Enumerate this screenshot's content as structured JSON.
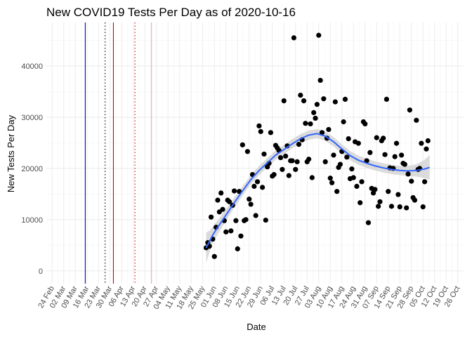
{
  "chart_data": {
    "type": "scatter",
    "title": "New COVID19 Tests Per Day as of 2020-10-16",
    "xlabel": "Date",
    "ylabel": "New Tests Per Day",
    "grid": true,
    "legend": "none",
    "xlim": [
      -3.5,
      248.5
    ],
    "ylim": [
      -2500,
      48500
    ],
    "x_day0": "2020-02-24",
    "x_ticks": [
      {
        "day": 0,
        "label": "24 Feb"
      },
      {
        "day": 7,
        "label": "02 Mar"
      },
      {
        "day": 14,
        "label": "09 Mar"
      },
      {
        "day": 21,
        "label": "16 Mar"
      },
      {
        "day": 28,
        "label": "23 Mar"
      },
      {
        "day": 35,
        "label": "30 Mar"
      },
      {
        "day": 42,
        "label": "06 Apr"
      },
      {
        "day": 49,
        "label": "13 Apr"
      },
      {
        "day": 56,
        "label": "20 Apr"
      },
      {
        "day": 63,
        "label": "27 Apr"
      },
      {
        "day": 70,
        "label": "04 May"
      },
      {
        "day": 77,
        "label": "11 May"
      },
      {
        "day": 84,
        "label": "18 May"
      },
      {
        "day": 91,
        "label": "25 May"
      },
      {
        "day": 98,
        "label": "01 Jun"
      },
      {
        "day": 105,
        "label": "08 Jun"
      },
      {
        "day": 112,
        "label": "15 Jun"
      },
      {
        "day": 119,
        "label": "22 Jun"
      },
      {
        "day": 126,
        "label": "29 Jun"
      },
      {
        "day": 133,
        "label": "06 Jul"
      },
      {
        "day": 140,
        "label": "13 Jul"
      },
      {
        "day": 147,
        "label": "20 Jul"
      },
      {
        "day": 154,
        "label": "27 Jul"
      },
      {
        "day": 161,
        "label": "03 Aug"
      },
      {
        "day": 168,
        "label": "10 Aug"
      },
      {
        "day": 175,
        "label": "17 Aug"
      },
      {
        "day": 182,
        "label": "24 Aug"
      },
      {
        "day": 189,
        "label": "31 Aug"
      },
      {
        "day": 196,
        "label": "07 Sep"
      },
      {
        "day": 203,
        "label": "14 Sep"
      },
      {
        "day": 210,
        "label": "21 Sep"
      },
      {
        "day": 217,
        "label": "28 Sep"
      },
      {
        "day": 224,
        "label": "05 Oct"
      },
      {
        "day": 231,
        "label": "12 Oct"
      },
      {
        "day": 238,
        "label": "19 Oct"
      },
      {
        "day": 245,
        "label": "26 Oct"
      }
    ],
    "y_ticks": [
      0,
      10000,
      20000,
      30000,
      40000
    ],
    "vlines": [
      {
        "day": 20,
        "color": "#0000cc",
        "style": "solid"
      },
      {
        "day": 32,
        "color": "#000000",
        "style": "dotted"
      },
      {
        "day": 37,
        "color": "#cc0000",
        "style": "solid"
      },
      {
        "day": 50,
        "color": "#cc0000",
        "style": "dotted"
      },
      {
        "day": 60,
        "color": "#f4a6a6",
        "style": "solid"
      }
    ],
    "point_color": "#000000",
    "smooth_color": "#3366ff",
    "ribbon_color": "#d9d9d9",
    "points": [
      [
        93,
        4500
      ],
      [
        94,
        5500
      ],
      [
        95,
        4800
      ],
      [
        96,
        10500
      ],
      [
        97,
        6200
      ],
      [
        98,
        2800
      ],
      [
        99,
        8500
      ],
      [
        100,
        13800
      ],
      [
        101,
        11500
      ],
      [
        102,
        15200
      ],
      [
        103,
        12000
      ],
      [
        104,
        9800
      ],
      [
        105,
        7600
      ],
      [
        106,
        13800
      ],
      [
        107,
        13500
      ],
      [
        108,
        7800
      ],
      [
        109,
        12800
      ],
      [
        110,
        15600
      ],
      [
        111,
        9800
      ],
      [
        112,
        4300
      ],
      [
        113,
        15500
      ],
      [
        114,
        6800
      ],
      [
        115,
        24600
      ],
      [
        116,
        9800
      ],
      [
        117,
        10000
      ],
      [
        118,
        23300
      ],
      [
        119,
        14000
      ],
      [
        120,
        13000
      ],
      [
        121,
        18800
      ],
      [
        122,
        16500
      ],
      [
        123,
        10800
      ],
      [
        124,
        17400
      ],
      [
        125,
        28300
      ],
      [
        126,
        27200
      ],
      [
        127,
        16300
      ],
      [
        128,
        22800
      ],
      [
        129,
        9900
      ],
      [
        130,
        20300
      ],
      [
        131,
        21000
      ],
      [
        132,
        27000
      ],
      [
        133,
        18500
      ],
      [
        134,
        18800
      ],
      [
        135,
        24500
      ],
      [
        136,
        24000
      ],
      [
        137,
        23500
      ],
      [
        138,
        22100
      ],
      [
        139,
        19800
      ],
      [
        140,
        33200
      ],
      [
        141,
        22400
      ],
      [
        142,
        24400
      ],
      [
        143,
        18600
      ],
      [
        144,
        21500
      ],
      [
        145,
        21500
      ],
      [
        146,
        45500
      ],
      [
        147,
        19800
      ],
      [
        148,
        21300
      ],
      [
        149,
        24700
      ],
      [
        150,
        34300
      ],
      [
        151,
        25600
      ],
      [
        152,
        33200
      ],
      [
        153,
        28800
      ],
      [
        154,
        21300
      ],
      [
        155,
        21800
      ],
      [
        156,
        28700
      ],
      [
        157,
        18200
      ],
      [
        158,
        30900
      ],
      [
        159,
        29800
      ],
      [
        160,
        32500
      ],
      [
        161,
        46000
      ],
      [
        162,
        37200
      ],
      [
        163,
        27000
      ],
      [
        164,
        33600
      ],
      [
        165,
        21300
      ],
      [
        166,
        25900
      ],
      [
        167,
        27600
      ],
      [
        168,
        18100
      ],
      [
        169,
        17200
      ],
      [
        170,
        22600
      ],
      [
        171,
        33000
      ],
      [
        172,
        15500
      ],
      [
        173,
        20200
      ],
      [
        174,
        20800
      ],
      [
        175,
        23300
      ],
      [
        176,
        29100
      ],
      [
        177,
        33500
      ],
      [
        178,
        22200
      ],
      [
        179,
        25800
      ],
      [
        180,
        18000
      ],
      [
        181,
        19900
      ],
      [
        182,
        18200
      ],
      [
        183,
        25200
      ],
      [
        184,
        16500
      ],
      [
        185,
        24900
      ],
      [
        186,
        13300
      ],
      [
        187,
        17400
      ],
      [
        188,
        29100
      ],
      [
        189,
        28700
      ],
      [
        190,
        21500
      ],
      [
        191,
        9400
      ],
      [
        192,
        23100
      ],
      [
        193,
        16100
      ],
      [
        194,
        15200
      ],
      [
        195,
        15900
      ],
      [
        196,
        26000
      ],
      [
        197,
        12600
      ],
      [
        198,
        13500
      ],
      [
        199,
        25400
      ],
      [
        200,
        25900
      ],
      [
        201,
        22700
      ],
      [
        202,
        33500
      ],
      [
        203,
        15500
      ],
      [
        204,
        20100
      ],
      [
        205,
        12600
      ],
      [
        206,
        20000
      ],
      [
        207,
        22300
      ],
      [
        208,
        24900
      ],
      [
        209,
        14900
      ],
      [
        210,
        12500
      ],
      [
        211,
        22600
      ],
      [
        212,
        21000
      ],
      [
        213,
        20800
      ],
      [
        214,
        12300
      ],
      [
        215,
        18900
      ],
      [
        216,
        31400
      ],
      [
        217,
        17500
      ],
      [
        218,
        14300
      ],
      [
        219,
        13800
      ],
      [
        220,
        29400
      ],
      [
        221,
        19800
      ],
      [
        222,
        20000
      ],
      [
        223,
        24900
      ],
      [
        224,
        12500
      ],
      [
        225,
        17400
      ],
      [
        226,
        23800
      ],
      [
        227,
        25400
      ]
    ],
    "smooth": [
      {
        "day": 93,
        "y": 4500,
        "lo": 1500,
        "hi": 7500
      },
      {
        "day": 95,
        "y": 5700,
        "lo": 3600,
        "hi": 7800
      },
      {
        "day": 97,
        "y": 7000,
        "lo": 5400,
        "hi": 8600
      },
      {
        "day": 100,
        "y": 8500,
        "lo": 7100,
        "hi": 9900
      },
      {
        "day": 105,
        "y": 10900,
        "lo": 9800,
        "hi": 12000
      },
      {
        "day": 110,
        "y": 13300,
        "lo": 12300,
        "hi": 14300
      },
      {
        "day": 115,
        "y": 15600,
        "lo": 14700,
        "hi": 16500
      },
      {
        "day": 120,
        "y": 17800,
        "lo": 16900,
        "hi": 18700
      },
      {
        "day": 125,
        "y": 19600,
        "lo": 18700,
        "hi": 20500
      },
      {
        "day": 130,
        "y": 21100,
        "lo": 20200,
        "hi": 22000
      },
      {
        "day": 135,
        "y": 22600,
        "lo": 21700,
        "hi": 23500
      },
      {
        "day": 140,
        "y": 23700,
        "lo": 22800,
        "hi": 24600
      },
      {
        "day": 145,
        "y": 24800,
        "lo": 23900,
        "hi": 25700
      },
      {
        "day": 150,
        "y": 25800,
        "lo": 24900,
        "hi": 26700
      },
      {
        "day": 155,
        "y": 26500,
        "lo": 25600,
        "hi": 27400
      },
      {
        "day": 160,
        "y": 26800,
        "lo": 25900,
        "hi": 27700
      },
      {
        "day": 165,
        "y": 26300,
        "lo": 25400,
        "hi": 27200
      },
      {
        "day": 170,
        "y": 25200,
        "lo": 24300,
        "hi": 26100
      },
      {
        "day": 175,
        "y": 23800,
        "lo": 22900,
        "hi": 24700
      },
      {
        "day": 180,
        "y": 22500,
        "lo": 21600,
        "hi": 23400
      },
      {
        "day": 185,
        "y": 21600,
        "lo": 20700,
        "hi": 22500
      },
      {
        "day": 190,
        "y": 21000,
        "lo": 20100,
        "hi": 21900
      },
      {
        "day": 195,
        "y": 20500,
        "lo": 19600,
        "hi": 21400
      },
      {
        "day": 200,
        "y": 20100,
        "lo": 19200,
        "hi": 21000
      },
      {
        "day": 205,
        "y": 19800,
        "lo": 18900,
        "hi": 20700
      },
      {
        "day": 210,
        "y": 19600,
        "lo": 18700,
        "hi": 20500
      },
      {
        "day": 215,
        "y": 19500,
        "lo": 18500,
        "hi": 20500
      },
      {
        "day": 220,
        "y": 19600,
        "lo": 18400,
        "hi": 20800
      },
      {
        "day": 225,
        "y": 19900,
        "lo": 18100,
        "hi": 21700
      },
      {
        "day": 228,
        "y": 20200,
        "lo": 17800,
        "hi": 22600
      }
    ]
  }
}
